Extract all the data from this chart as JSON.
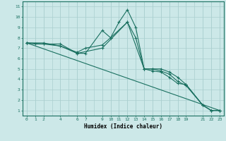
{
  "xlabel": "Humidex (Indice chaleur)",
  "bg_color": "#cce8e8",
  "grid_color": "#aacfcf",
  "line_color": "#1a7060",
  "xlim": [
    -0.5,
    23.5
  ],
  "ylim": [
    0.5,
    11.5
  ],
  "xticks": [
    0,
    1,
    2,
    4,
    6,
    7,
    9,
    10,
    11,
    12,
    13,
    14,
    15,
    16,
    17,
    18,
    19,
    21,
    22,
    23
  ],
  "yticks": [
    1,
    2,
    3,
    4,
    5,
    6,
    7,
    8,
    9,
    10,
    11
  ],
  "series": [
    {
      "x": [
        0,
        1,
        2,
        4,
        6,
        7,
        9,
        10,
        11,
        12,
        13,
        14,
        15,
        16,
        17,
        18,
        19,
        21,
        22,
        23
      ],
      "y": [
        7.5,
        7.4,
        7.4,
        7.4,
        6.5,
        6.5,
        8.7,
        8.0,
        9.5,
        10.7,
        9.0,
        5.0,
        4.8,
        4.7,
        4.2,
        3.6,
        3.5,
        1.5,
        1.0,
        1.0
      ]
    },
    {
      "x": [
        0,
        2,
        4,
        6,
        7,
        9,
        10,
        12,
        13,
        14,
        15,
        16,
        17,
        18,
        19,
        21,
        22,
        23
      ],
      "y": [
        7.5,
        7.5,
        7.2,
        6.6,
        7.0,
        7.3,
        8.0,
        9.5,
        8.0,
        5.0,
        5.0,
        5.0,
        4.7,
        4.2,
        3.5,
        1.5,
        1.0,
        1.0
      ]
    },
    {
      "x": [
        0,
        2,
        4,
        6,
        9,
        12,
        14,
        15,
        16,
        17,
        18,
        19,
        21,
        22,
        23
      ],
      "y": [
        7.5,
        7.4,
        7.2,
        6.5,
        7.0,
        9.5,
        5.0,
        5.0,
        4.8,
        4.5,
        3.8,
        3.4,
        1.5,
        1.0,
        1.0
      ]
    },
    {
      "x": [
        0,
        23
      ],
      "y": [
        7.5,
        1.0
      ]
    }
  ]
}
